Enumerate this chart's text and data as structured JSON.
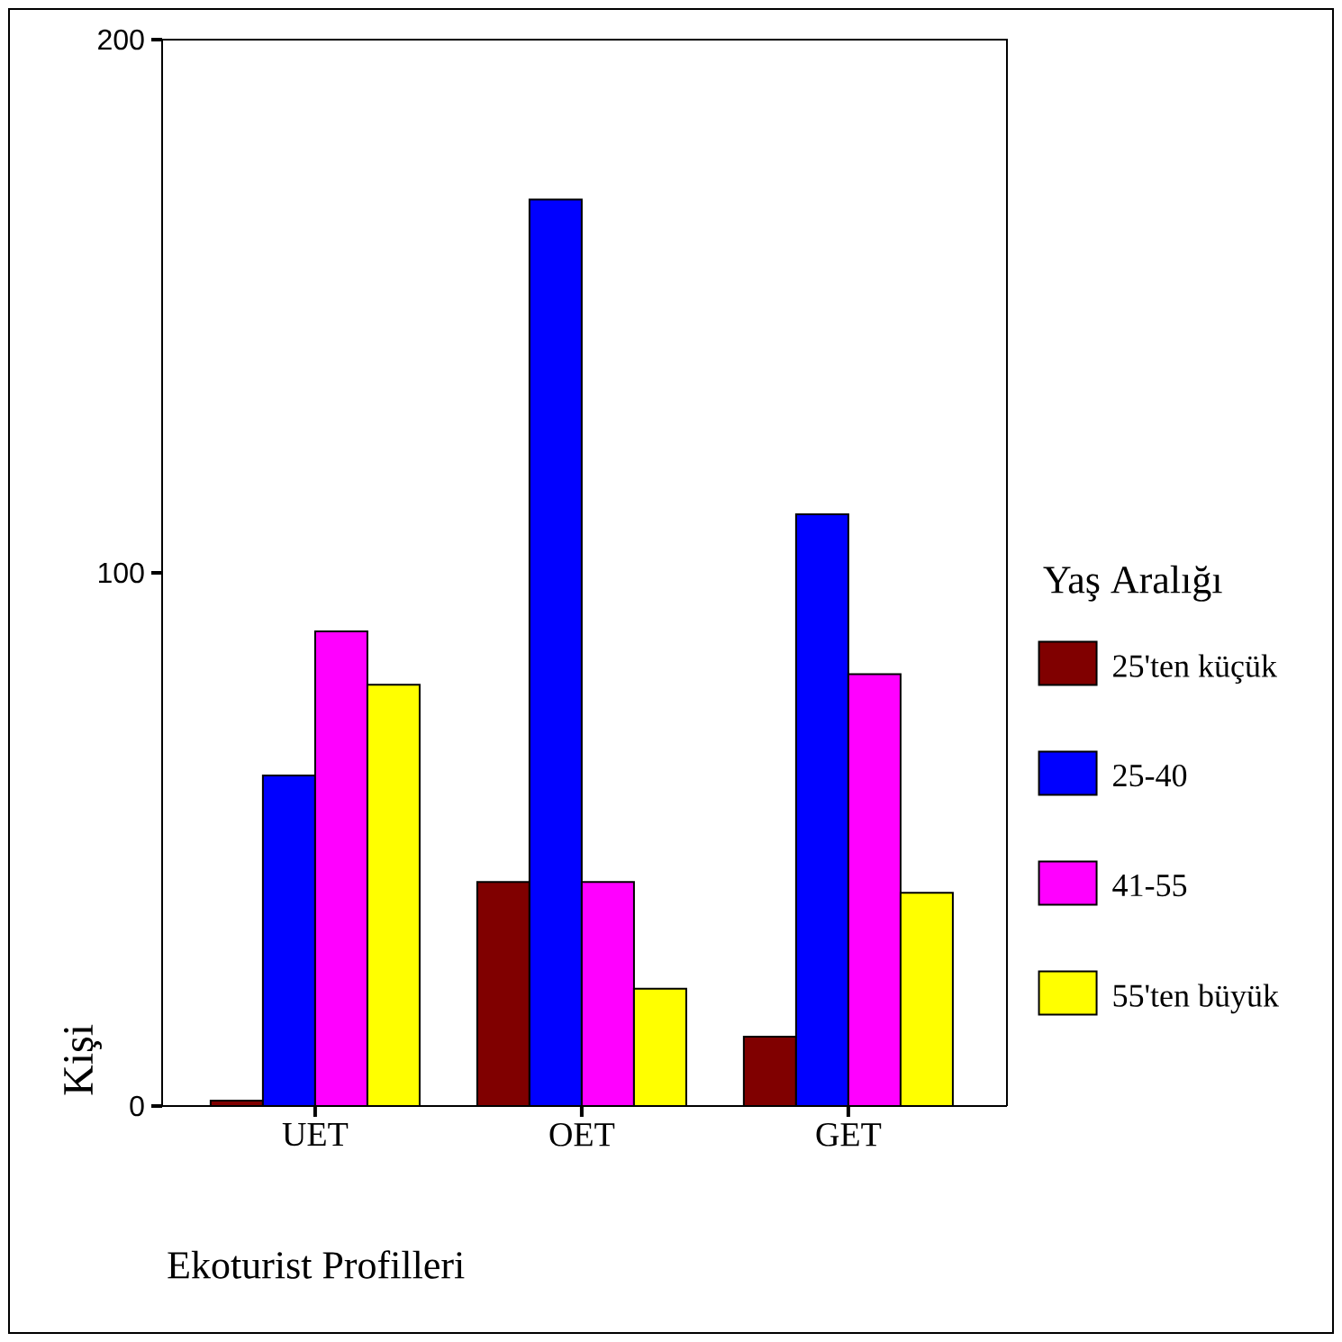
{
  "chart_data": {
    "type": "bar",
    "xlabel": "Ekoturist Profilleri",
    "ylabel": "Kişi",
    "legend_title": "Yaş Aralığı",
    "categories": [
      "UET",
      "OET",
      "GET"
    ],
    "series": [
      {
        "name": "25'ten küçük",
        "color": "#800000",
        "values": [
          1,
          42,
          13
        ]
      },
      {
        "name": "25-40",
        "color": "#0000ff",
        "values": [
          62,
          170,
          111
        ]
      },
      {
        "name": "41-55",
        "color": "#ff00ff",
        "values": [
          89,
          42,
          81
        ]
      },
      {
        "name": "55'ten büyük",
        "color": "#ffff00",
        "values": [
          79,
          22,
          40
        ]
      }
    ],
    "ylim": [
      0,
      200
    ],
    "yticks": [
      0,
      100,
      200
    ],
    "grid": false,
    "legend": "right"
  }
}
